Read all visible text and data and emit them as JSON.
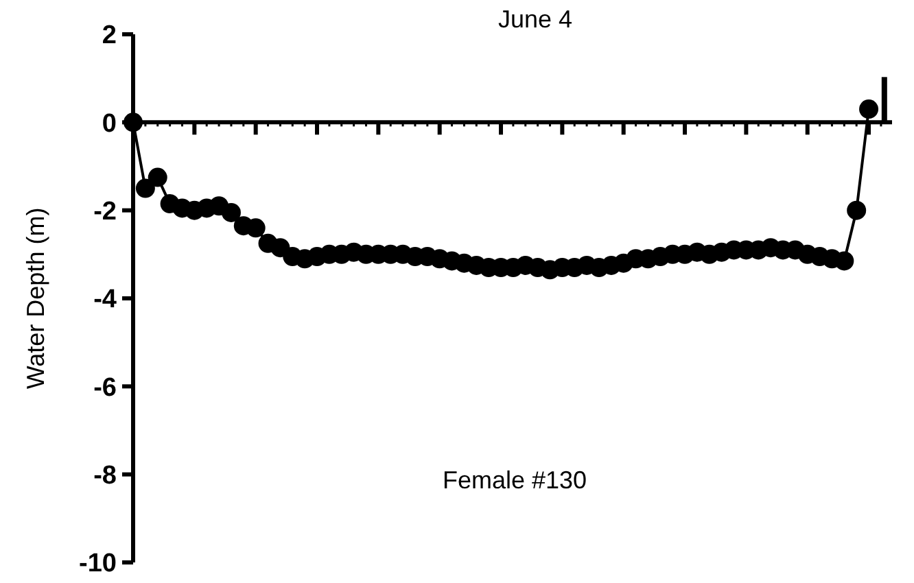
{
  "chart_data": {
    "type": "line",
    "title": "June 4",
    "ylabel": "Water Depth (m)",
    "annotations": [
      "Female #130"
    ],
    "categories": [
      null,
      null,
      null,
      null,
      null,
      null,
      null,
      null,
      null,
      null,
      null,
      null,
      null,
      null,
      null,
      null,
      null,
      null,
      null,
      null,
      null,
      null,
      null,
      null,
      null,
      null,
      null,
      null,
      null,
      null,
      null,
      null,
      null,
      null,
      null,
      null,
      null,
      null,
      null,
      null,
      null,
      null,
      null,
      null,
      null,
      null,
      null,
      null,
      null,
      null,
      null,
      null,
      null,
      null,
      null,
      null,
      null,
      null,
      null,
      null,
      null
    ],
    "series": [
      {
        "color": "#000000",
        "values": [
          0,
          -1.5,
          -1.25,
          -1.85,
          -1.95,
          -2.0,
          -1.95,
          -1.9,
          -2.05,
          -2.35,
          -2.4,
          -2.75,
          -2.85,
          -3.05,
          -3.1,
          -3.05,
          -3.0,
          -3.0,
          -2.95,
          -3.0,
          -3.0,
          -3.0,
          -3.0,
          -3.05,
          -3.05,
          -3.1,
          -3.15,
          -3.2,
          -3.25,
          -3.3,
          -3.3,
          -3.3,
          -3.25,
          -3.3,
          -3.35,
          -3.3,
          -3.3,
          -3.25,
          -3.3,
          -3.25,
          -3.2,
          -3.1,
          -3.1,
          -3.05,
          -3.0,
          -3.0,
          -2.95,
          -3.0,
          -2.95,
          -2.9,
          -2.9,
          -2.9,
          -2.85,
          -2.9,
          -2.9,
          -3.0,
          -3.05,
          -3.1,
          -3.15,
          -2.0,
          0.3
        ]
      }
    ],
    "ylim": [
      -10,
      2
    ],
    "yticks": [
      -10,
      -8,
      -6,
      -4,
      -2,
      0,
      2
    ],
    "marker": "circle",
    "line_style": "solid"
  }
}
